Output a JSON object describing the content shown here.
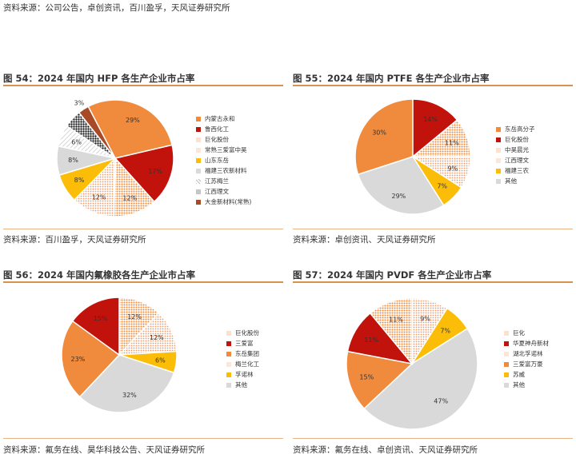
{
  "top_source": "资料来源：公司公告，卓创资讯，百川盈孚，天风证券研究所",
  "colors": {
    "orange": "#f08a3c",
    "red": "#c1120c",
    "orange_hatch": "#f4a46b",
    "light_hatch": "#f2c8aa",
    "yellow": "#fbbd08",
    "grey": "#d9d9d9",
    "dark": "#1c1c1c",
    "brown": "#a84a26",
    "white_hatch": "#ffffff"
  },
  "panels": [
    {
      "title": "图 54：2024 年国内 HFP 各生产企业市占率",
      "source": "资料来源：百川盈孚，天风证券研究所",
      "chart_data": {
        "type": "pie",
        "title": "图 54：2024 年国内 HFP 各生产企业市占率",
        "legend_position": "right",
        "slices": [
          {
            "name": "内蒙古永和",
            "value": 29,
            "label": "29%",
            "color": "#f08a3c",
            "pattern": "solid"
          },
          {
            "name": "鲁西化工",
            "value": 17,
            "label": "17%",
            "color": "#c1120c",
            "pattern": "solid"
          },
          {
            "name": "巨化股份",
            "value": 12,
            "label": "12%",
            "color": "#f08a3c",
            "pattern": "dots"
          },
          {
            "name": "常熟三爱富中昊",
            "value": 12,
            "label": "12%",
            "color": "#f2c8aa",
            "pattern": "dots"
          },
          {
            "name": "山东东岳",
            "value": 8,
            "label": "8%",
            "color": "#fbbd08",
            "pattern": "solid"
          },
          {
            "name": "福建三农新材料",
            "value": 8,
            "label": "8%",
            "color": "#d9d9d9",
            "pattern": "solid"
          },
          {
            "name": "江苏梅兰",
            "value": 6,
            "label": "6%",
            "color": "#d9d9d9",
            "pattern": "hatch"
          },
          {
            "name": "江西理文",
            "value": 5,
            "label": "",
            "color": "#1c1c1c",
            "pattern": "dots"
          },
          {
            "name": "大金新材料(常熟)",
            "value": 3,
            "label": "3%",
            "color": "#a84a26",
            "pattern": "solid"
          }
        ]
      }
    },
    {
      "title": "图 55：2024 年国内 PTFE 各生产企业市占率",
      "source": "资料来源：卓创资讯、天风证券研究所",
      "chart_data": {
        "type": "pie",
        "title": "图 55：2024 年国内 PTFE 各生产企业市占率",
        "legend_position": "right",
        "slices": [
          {
            "name": "东岳高分子",
            "value": 30,
            "label": "30%",
            "color": "#f08a3c",
            "pattern": "solid"
          },
          {
            "name": "巨化股份",
            "value": 14,
            "label": "14%",
            "color": "#c1120c",
            "pattern": "solid"
          },
          {
            "name": "中昊晨光",
            "value": 11,
            "label": "11%",
            "color": "#f08a3c",
            "pattern": "dots"
          },
          {
            "name": "江西理文",
            "value": 9,
            "label": "9%",
            "color": "#f2c8aa",
            "pattern": "dots"
          },
          {
            "name": "福建三农",
            "value": 7,
            "label": "7%",
            "color": "#fbbd08",
            "pattern": "solid"
          },
          {
            "name": "其他",
            "value": 29,
            "label": "29%",
            "color": "#d9d9d9",
            "pattern": "solid"
          }
        ]
      }
    },
    {
      "title": "图 56：2024 年国内氟橡胶各生产企业市占率",
      "source": "资料来源：氟务在线、昊华科技公告、天风证券研究所",
      "chart_data": {
        "type": "pie",
        "title": "图 56：2024 年国内氟橡胶各生产企业市占率",
        "legend_position": "right",
        "slices": [
          {
            "name": "巨化股份",
            "value": 12,
            "label": "12%",
            "color": "#f08a3c",
            "pattern": "dots"
          },
          {
            "name": "梅兰化工",
            "value": 12,
            "label": "12%",
            "color": "#f2c8aa",
            "pattern": "dots"
          },
          {
            "name": "孚诺林",
            "value": 6,
            "label": "6%",
            "color": "#fbbd08",
            "pattern": "solid"
          },
          {
            "name": "其他",
            "value": 32,
            "label": "32%",
            "color": "#d9d9d9",
            "pattern": "solid"
          },
          {
            "name": "东岳集团",
            "value": 23,
            "label": "23%",
            "color": "#f08a3c",
            "pattern": "solid"
          },
          {
            "name": "三爱富",
            "value": 15,
            "label": "15%",
            "color": "#c1120c",
            "pattern": "solid"
          }
        ],
        "legend_order": [
          "巨化股份",
          "三爱富",
          "东岳集团",
          "梅兰化工",
          "孚诺林",
          "其他"
        ]
      }
    },
    {
      "title": "图 57：2024 年国内 PVDF 各生产企业市占率",
      "source": "资料来源：氟务在线、卓创资讯、天风证券研究所",
      "chart_data": {
        "type": "pie",
        "title": "图 57：2024 年国内 PVDF 各生产企业市占率",
        "legend_position": "right",
        "slices": [
          {
            "name": "湖北孚诺林",
            "value": 9,
            "label": "9%",
            "color": "#f2c8aa",
            "pattern": "dots"
          },
          {
            "name": "苏威",
            "value": 7,
            "label": "7%",
            "color": "#fbbd08",
            "pattern": "solid"
          },
          {
            "name": "其他",
            "value": 47,
            "label": "47%",
            "color": "#d9d9d9",
            "pattern": "solid"
          },
          {
            "name": "三爱富万豪",
            "value": 15,
            "label": "15%",
            "color": "#f08a3c",
            "pattern": "solid"
          },
          {
            "name": "华夏神舟新材",
            "value": 11,
            "label": "11%",
            "color": "#c1120c",
            "pattern": "solid"
          },
          {
            "name": "巨化",
            "value": 11,
            "label": "11%",
            "color": "#f08a3c",
            "pattern": "dots"
          }
        ],
        "legend_order": [
          "巨化",
          "华夏神舟新材",
          "湖北孚诺林",
          "三爱富万豪",
          "苏威",
          "其他"
        ]
      }
    }
  ]
}
